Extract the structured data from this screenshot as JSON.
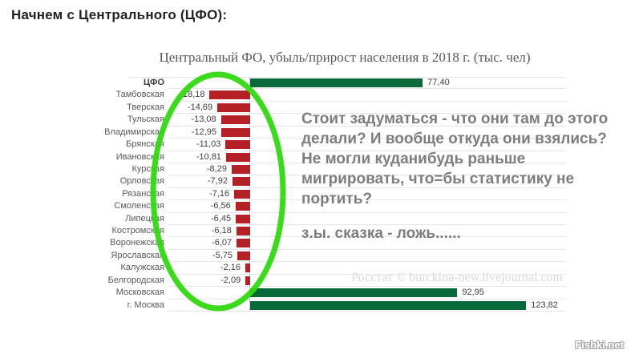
{
  "heading": "Начнем с Центрального (ЦФО):",
  "chart": {
    "title": "Центральный ФО, убыль/прирост населения в 2018 г. (тыс. чел)",
    "watermark": "Росстат © burckina-new.livejournal.com"
  },
  "chart_data": {
    "type": "bar",
    "orientation": "horizontal",
    "title": "Центральный ФО, убыль/прирост населения в 2018 г. (тыс. чел)",
    "xlabel": "",
    "ylabel": "",
    "unit": "тыс. чел",
    "xlim": [
      -37,
      142
    ],
    "grid": "row-separators",
    "legend": "none",
    "categories": [
      "ЦФО",
      "Тамбовская",
      "Тверская",
      "Тульская",
      "Владимирская",
      "Брянская",
      "Ивановская",
      "Курская",
      "Орловская",
      "Рязанская",
      "Смоленская",
      "Липецкая",
      "Костромская",
      "Воронежская",
      "Ярославская",
      "Калужская",
      "Белгородская",
      "Московская",
      "г. Москва"
    ],
    "values": [
      77.4,
      -18.18,
      -14.69,
      -13.08,
      -12.95,
      -11.03,
      -10.81,
      -8.29,
      -7.92,
      -7.16,
      -6.56,
      -6.45,
      -6.18,
      -6.07,
      -5.75,
      -2.16,
      -2.09,
      92.95,
      123.82
    ],
    "values_display": [
      "77,40",
      "-18,18",
      "-14,69",
      "-13,08",
      "-12,95",
      "-11,03",
      "-10,81",
      "-8,29",
      "-7,92",
      "-7,16",
      "-6,56",
      "-6,45",
      "-6,18",
      "-6,07",
      "-5,75",
      "-2,16",
      "-2,09",
      "92,95",
      "123,82"
    ],
    "positive_color": "#07683a",
    "negative_color": "#b42025"
  },
  "annotation": {
    "lines": [
      "Стоит задуматься - что они там до этого",
      "делали? И вообще откуда они взялись?",
      "Не могли куданибудь раньше",
      "мигрировать, что=бы статистику не",
      "портить?"
    ],
    "ps": "з.ы. сказка - ложь......"
  },
  "highlight": {
    "shape": "ellipse",
    "color": "#2fd90f"
  },
  "footer": {
    "watermark": "Fishki.net"
  }
}
